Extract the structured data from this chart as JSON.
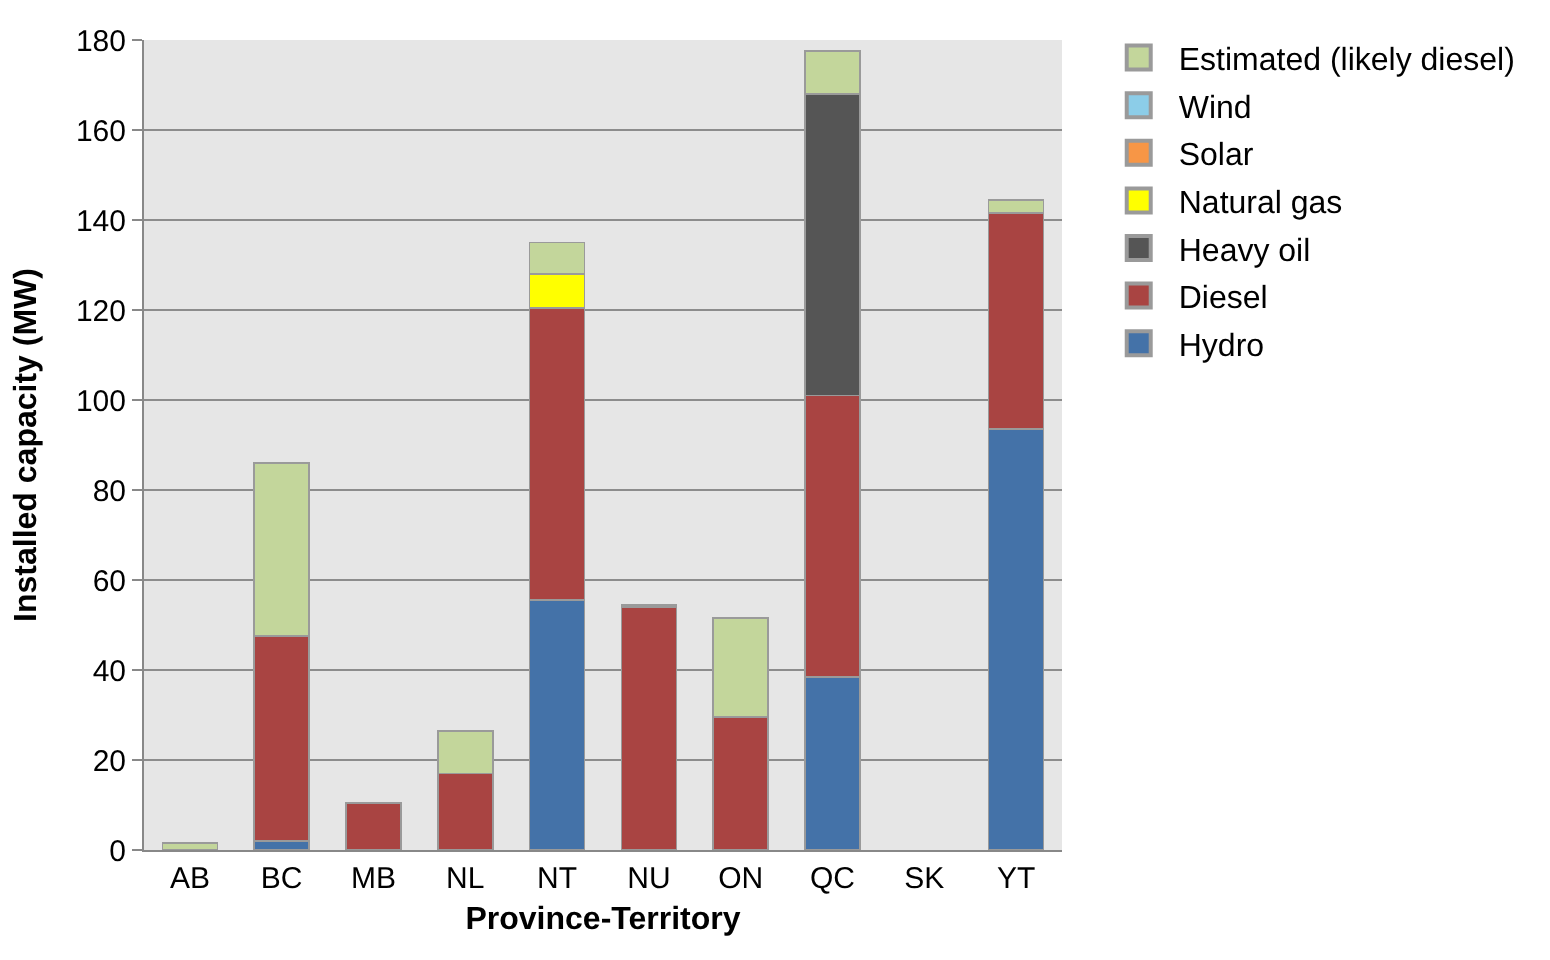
{
  "chart_data": {
    "type": "bar",
    "stacked": true,
    "xlabel": "Province-Territory",
    "ylabel": "Installed capacity (MW)",
    "categories": [
      "AB",
      "BC",
      "MB",
      "NL",
      "NT",
      "NU",
      "ON",
      "QC",
      "SK",
      "YT"
    ],
    "series": [
      {
        "name": "Hydro",
        "color": "#4472a8",
        "values": [
          0,
          2,
          0,
          0,
          55.5,
          0,
          0,
          38.5,
          0,
          93.5
        ]
      },
      {
        "name": "Diesel",
        "color": "#a94442",
        "values": [
          0,
          45.5,
          10.5,
          17,
          65,
          54,
          29.5,
          62.5,
          0,
          48
        ]
      },
      {
        "name": "Heavy oil",
        "color": "#555555",
        "values": [
          0,
          0,
          0,
          0,
          0,
          0,
          0,
          67,
          0,
          0
        ]
      },
      {
        "name": "Natural gas",
        "color": "#ffff00",
        "values": [
          0,
          0,
          0,
          0,
          7.5,
          0,
          0,
          0,
          0,
          0
        ]
      },
      {
        "name": "Solar",
        "color": "#f79646",
        "values": [
          0,
          0,
          0,
          0,
          0,
          0,
          0,
          0,
          0,
          0
        ]
      },
      {
        "name": "Wind",
        "color": "#8ccde8",
        "values": [
          0,
          0,
          0,
          0,
          0,
          0,
          0,
          0,
          0,
          0
        ]
      },
      {
        "name": "Estimated (likely diesel)",
        "color": "#c3d69b",
        "values": [
          1.5,
          38.5,
          0,
          9.5,
          7,
          0.5,
          22,
          9.5,
          0,
          3
        ]
      }
    ],
    "ylim": [
      0,
      180
    ],
    "yticks": [
      0,
      20,
      40,
      60,
      80,
      100,
      120,
      140,
      160,
      180
    ],
    "grid": "y",
    "legend": "right"
  }
}
